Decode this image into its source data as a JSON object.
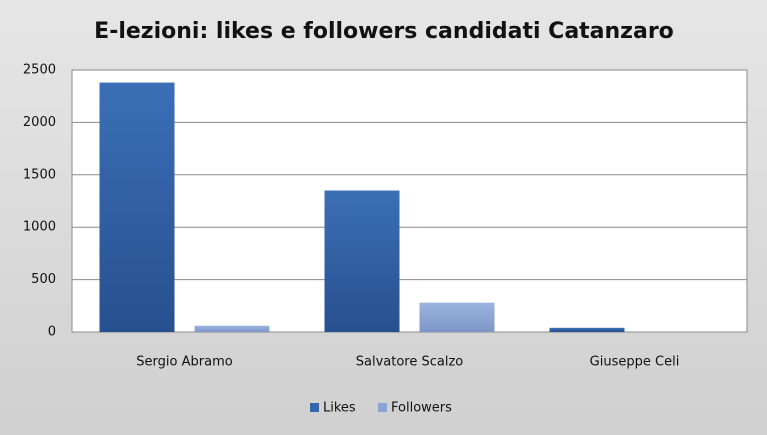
{
  "chart_data": {
    "type": "bar",
    "title": "E-lezioni: likes e followers candidati  Catanzaro",
    "categories": [
      "Sergio Abramo",
      "Salvatore Scalzo",
      "Giuseppe Celi"
    ],
    "series": [
      {
        "name": "Likes",
        "color": "#3366aa",
        "values": [
          2380,
          1350,
          40
        ]
      },
      {
        "name": "Followers",
        "color": "#8aa4d4",
        "values": [
          60,
          280,
          0
        ]
      }
    ],
    "ylim": [
      0,
      2500
    ],
    "yticks": [
      0,
      500,
      1000,
      1500,
      2000,
      2500
    ],
    "grid": true,
    "legend": "bottom"
  }
}
